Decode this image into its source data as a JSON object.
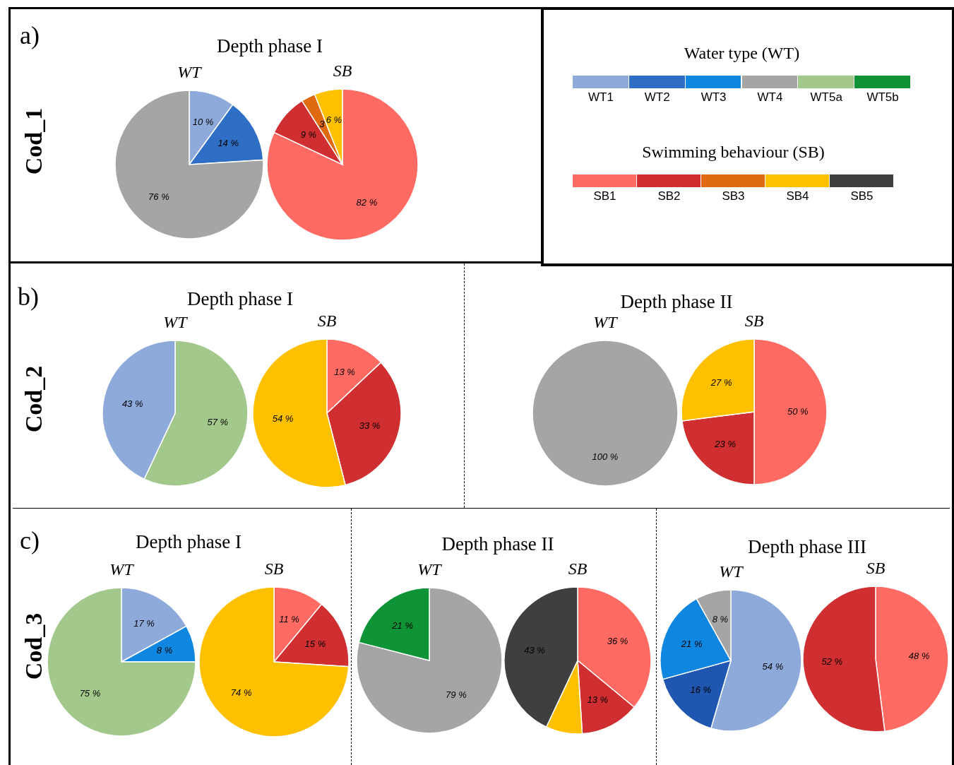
{
  "chart_data": [
    {
      "type": "pie",
      "title": "WT",
      "subtitle": "Depth phase I",
      "annotations": [
        "a)",
        "Cod_1"
      ],
      "values": [
        10,
        14,
        76
      ],
      "colors": [
        "#8eaadb",
        "#2e6ec4",
        "#a5a5a5"
      ],
      "value_labels": [
        "10 %",
        "14 %",
        "76 %"
      ]
    },
    {
      "type": "pie",
      "title": "SB",
      "values": [
        82,
        9,
        3,
        6
      ],
      "colors": [
        "#ff6b63",
        "#cf2f30",
        "#e06a10",
        "#ffc000"
      ],
      "value_labels": [
        "82 %",
        "9 %",
        "3",
        "6 %"
      ]
    },
    {
      "type": "other",
      "title": "Water type (WT)",
      "categories": [
        "WT1",
        "WT2",
        "WT3",
        "WT4",
        "WT5a",
        "WT5b"
      ],
      "colors": [
        "#8eaadb",
        "#2e6ec4",
        "#0f86e0",
        "#a5a5a5",
        "#a3c88c",
        "#0e9436"
      ]
    },
    {
      "type": "other",
      "title": "Swimming behaviour (SB)",
      "categories": [
        "SB1",
        "SB2",
        "SB3",
        "SB4",
        "SB5"
      ],
      "colors": [
        "#ff6b63",
        "#cf2f30",
        "#e06a10",
        "#ffc000",
        "#3f3f3f"
      ]
    },
    {
      "type": "pie",
      "title": "WT",
      "subtitle": "Depth phase I",
      "annotations": [
        "b)",
        "Cod_2"
      ],
      "values": [
        57,
        43
      ],
      "colors": [
        "#a3c88c",
        "#8eaadb"
      ],
      "value_labels": [
        "57 %",
        "43 %"
      ]
    },
    {
      "type": "pie",
      "title": "SB",
      "values": [
        13,
        33,
        54
      ],
      "colors": [
        "#ff6b63",
        "#cf2f30",
        "#ffc000"
      ],
      "value_labels": [
        "13 %",
        "33 %",
        "54 %"
      ]
    },
    {
      "type": "pie",
      "title": "WT",
      "subtitle": "Depth phase II",
      "values": [
        100
      ],
      "colors": [
        "#a5a5a5"
      ],
      "value_labels": [
        "100 %"
      ]
    },
    {
      "type": "pie",
      "title": "SB",
      "values": [
        50,
        23,
        27
      ],
      "colors": [
        "#ff6b63",
        "#cf2f30",
        "#ffc000"
      ],
      "value_labels": [
        "50 %",
        "23 %",
        "27 %"
      ]
    },
    {
      "type": "pie",
      "title": "WT",
      "subtitle": "Depth phase I",
      "annotations": [
        "c)",
        "Cod_3"
      ],
      "values": [
        17,
        8,
        75
      ],
      "colors": [
        "#8eaadb",
        "#0f86e0",
        "#a3c88c"
      ],
      "value_labels": [
        "17 %",
        "8 %",
        "75 %"
      ]
    },
    {
      "type": "pie",
      "title": "SB",
      "values": [
        11,
        15,
        74
      ],
      "colors": [
        "#ff6b63",
        "#cf2f30",
        "#ffc000"
      ],
      "value_labels": [
        "11 %",
        "15 %",
        "74 %"
      ]
    },
    {
      "type": "pie",
      "title": "WT",
      "subtitle": "Depth phase II",
      "values": [
        79,
        21
      ],
      "colors": [
        "#a5a5a5",
        "#0e9436"
      ],
      "value_labels": [
        "79 %",
        "21 %"
      ]
    },
    {
      "type": "pie",
      "title": "SB",
      "values": [
        36,
        13,
        8,
        43
      ],
      "colors": [
        "#ff6b63",
        "#cf2f30",
        "#ffc000",
        "#3f3f3f"
      ],
      "value_labels": [
        "36 %",
        "13 %",
        null,
        "43 %"
      ]
    },
    {
      "type": "pie",
      "title": "WT",
      "subtitle": "Depth phase III",
      "values": [
        54,
        16,
        21,
        8
      ],
      "colors": [
        "#8eaadb",
        "#1f56b0",
        "#0f86e0",
        "#a5a5a5"
      ],
      "value_labels": [
        "54 %",
        "16 %",
        "21 %",
        "8 %"
      ]
    },
    {
      "type": "pie",
      "title": "SB",
      "values": [
        48,
        52
      ],
      "colors": [
        "#ff6b63",
        "#cf2f30"
      ],
      "value_labels": [
        "48 %",
        "52 %"
      ]
    }
  ]
}
